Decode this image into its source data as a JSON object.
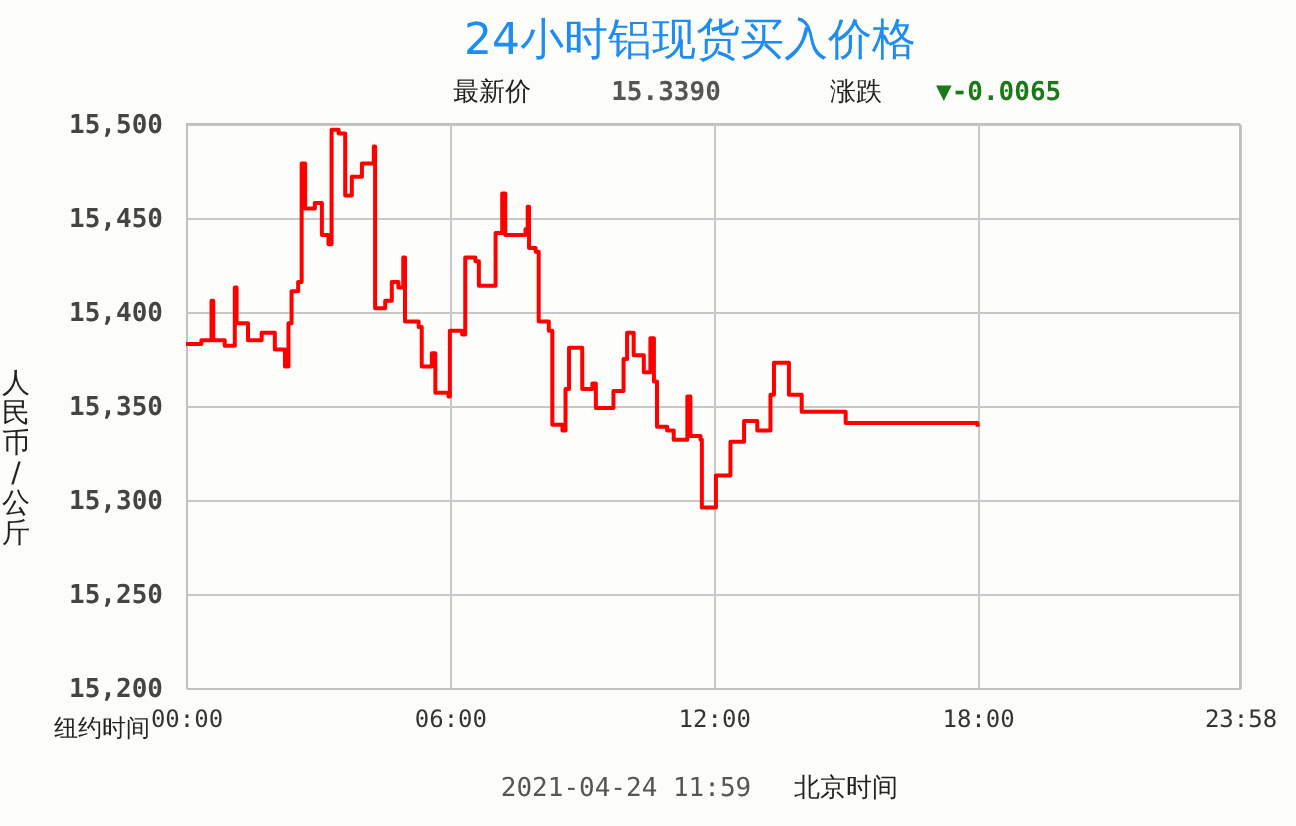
{
  "chart_data": {
    "type": "step",
    "title": "24小时铝现货买入价格",
    "ylabel": "人民币/公斤",
    "xlabel": "纽约时间",
    "annotations": [
      "最新价",
      "15.3390",
      "涨跌",
      "▼-0.0065",
      "2021-04-24 11:59",
      "北京时间"
    ],
    "x": [
      0,
      0.35,
      0.58,
      0.62,
      0.88,
      1.11,
      1.15,
      1.41,
      1.72,
      2.02,
      2.25,
      2.33,
      2.4,
      2.55,
      2.63,
      2.71,
      2.93,
      3.09,
      3.24,
      3.31,
      3.47,
      3.62,
      3.77,
      4.0,
      4.27,
      4.3,
      4.53,
      4.68,
      4.83,
      4.94,
      4.98,
      5.29,
      5.36,
      5.59,
      5.67,
      5.97,
      6.0,
      6.28,
      6.35,
      6.58,
      6.66,
      6.99,
      7.04,
      7.19,
      7.26,
      7.72,
      7.77,
      7.8,
      7.95,
      8.02,
      8.25,
      8.33,
      8.56,
      8.63,
      8.71,
      8.94,
      9.01,
      9.24,
      9.32,
      9.65,
      9.72,
      9.95,
      10.03,
      10.18,
      10.41,
      10.56,
      10.64,
      10.71,
      10.94,
      11.09,
      11.4,
      11.47,
      11.7,
      11.73,
      11.96,
      12.05,
      12.35,
      12.38,
      12.69,
      12.99,
      13.29,
      13.37,
      13.67,
      13.71,
      14.0,
      14.89,
      15.0,
      17.95,
      18.0
    ],
    "series": [
      {
        "color": "#ff0000",
        "values": [
          15383,
          15385,
          15406,
          15385,
          15382,
          15413,
          15394,
          15385,
          15389,
          15380,
          15371,
          15394,
          15411,
          15416,
          15479,
          15455,
          15458,
          15441,
          15436,
          15497,
          15495,
          15462,
          15472,
          15479,
          15488,
          15402,
          15406,
          15416,
          15413,
          15429,
          15395,
          15392,
          15371,
          15378,
          15357,
          15355,
          15390,
          15388,
          15429,
          15427,
          15414,
          15414,
          15442,
          15463,
          15441,
          15444,
          15456,
          15434,
          15432,
          15395,
          15390,
          15340,
          15337,
          15359,
          15381,
          15381,
          15359,
          15362,
          15349,
          15349,
          15358,
          15375,
          15389,
          15377,
          15368,
          15386,
          15363,
          15339,
          15337,
          15332,
          15355,
          15334,
          15332,
          15296,
          15296,
          15313,
          15313,
          15331,
          15342,
          15337,
          15356,
          15373,
          15373,
          15356,
          15347,
          15347,
          15341,
          15341,
          15339
        ]
      }
    ],
    "xlim": [
      0,
      23.967
    ],
    "xticks": [
      {
        "value": 0,
        "label": "00:00"
      },
      {
        "value": 6,
        "label": "06:00"
      },
      {
        "value": 12,
        "label": "12:00"
      },
      {
        "value": 18,
        "label": "18:00"
      },
      {
        "value": 23.967,
        "label": "23:58"
      }
    ],
    "ylim": [
      15200,
      15500
    ],
    "yticks": [
      {
        "value": 15200,
        "label": "15,200"
      },
      {
        "value": 15250,
        "label": "15,250"
      },
      {
        "value": 15300,
        "label": "15,300"
      },
      {
        "value": 15350,
        "label": "15,350"
      },
      {
        "value": 15400,
        "label": "15,400"
      },
      {
        "value": 15450,
        "label": "15,450"
      },
      {
        "value": 15500,
        "label": "15,500"
      }
    ],
    "grid": true,
    "marker": "none",
    "line_style": "solid"
  }
}
